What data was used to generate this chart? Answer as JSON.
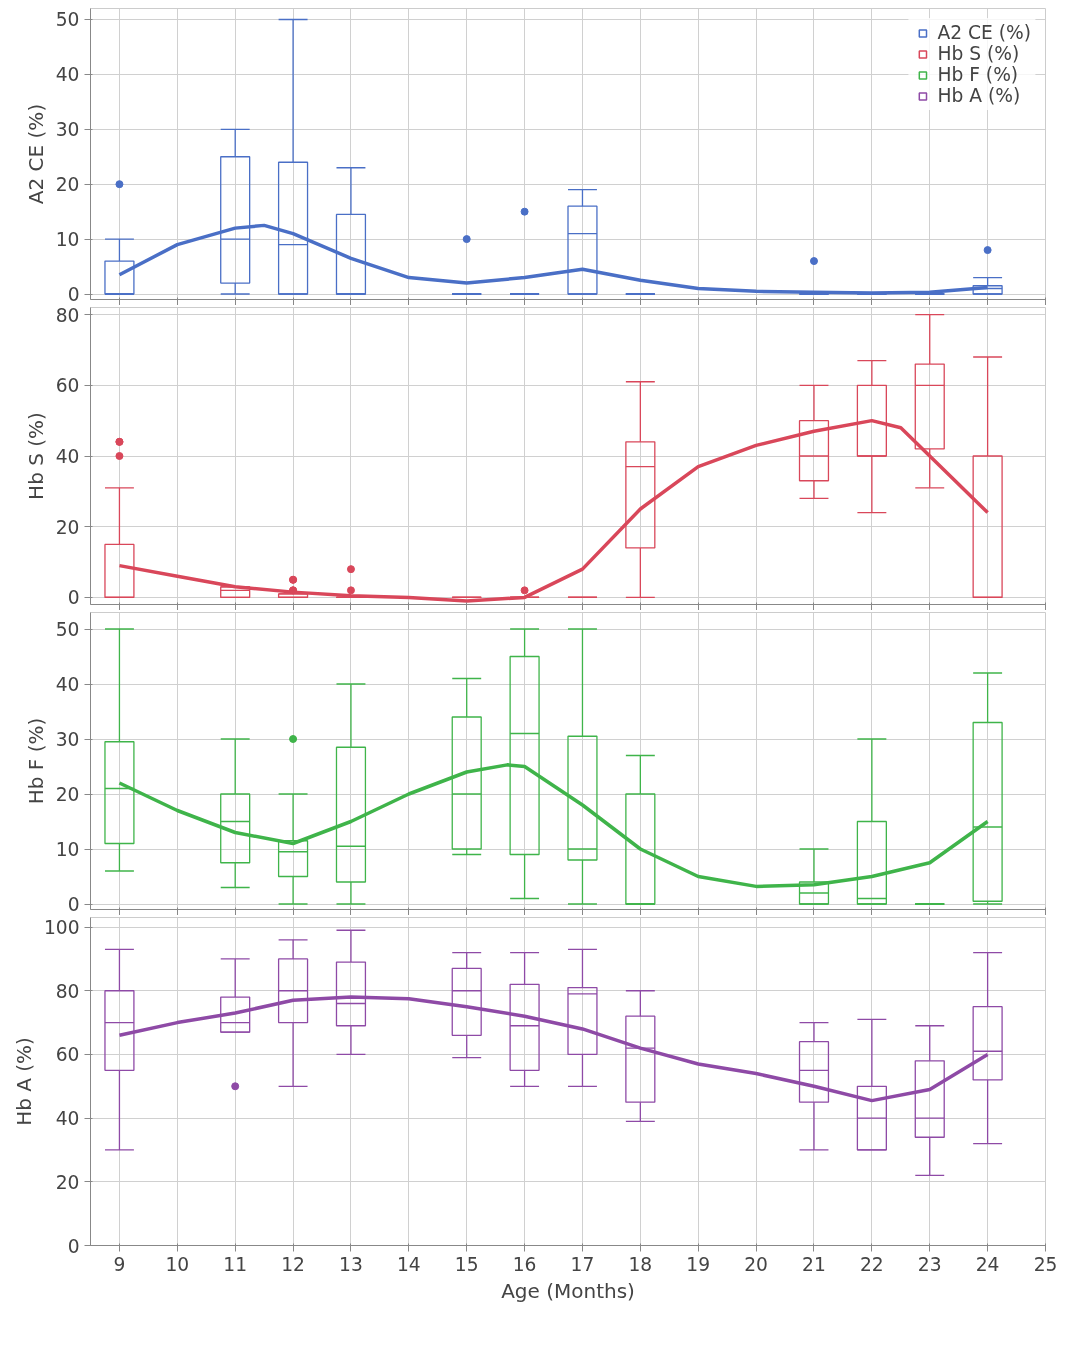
{
  "chart_data": [
    {
      "type": "box",
      "ylabel": "A2 CE (%)",
      "x": [
        9,
        11,
        12,
        13,
        15,
        16,
        17,
        18,
        21,
        22,
        23,
        24
      ],
      "xlim": [
        8.5,
        25
      ],
      "xticks": [
        9,
        10,
        11,
        12,
        13,
        14,
        15,
        16,
        17,
        18,
        19,
        20,
        21,
        22,
        23,
        24,
        25
      ],
      "ylim": [
        -1,
        52
      ],
      "yticks": [
        0,
        10,
        20,
        30,
        40,
        50
      ],
      "grid": true,
      "legend": "top right",
      "tick_labels": "y",
      "series": [
        {
          "name": "A2 CE (%)",
          "color": "#4a6fc6",
          "boxes": [
            {
              "low": 0,
              "q1": 0,
              "median": 0,
              "q3": 6,
              "high": 10,
              "outliers": [
                20
              ]
            },
            {
              "low": 0,
              "q1": 2,
              "median": 10,
              "q3": 25,
              "high": 30
            },
            {
              "low": 0,
              "q1": 0,
              "median": 9,
              "q3": 24,
              "high": 50
            },
            {
              "low": 0,
              "q1": 0,
              "median": 0,
              "q3": 14.5,
              "high": 23
            },
            {
              "low": 0,
              "q1": 0,
              "median": 0,
              "q3": 0,
              "high": 0,
              "outliers": [
                10
              ]
            },
            {
              "low": 0,
              "q1": 0,
              "median": 0,
              "q3": 0,
              "high": 0,
              "outliers": [
                15
              ]
            },
            {
              "low": 0,
              "q1": 0,
              "median": 11,
              "q3": 16,
              "high": 19
            },
            {
              "low": 0,
              "q1": 0,
              "median": 0,
              "q3": 0,
              "high": 0
            },
            {
              "low": 0,
              "q1": 0,
              "median": 0,
              "q3": 0,
              "high": 0,
              "outliers": [
                6
              ]
            },
            {
              "low": 0,
              "q1": 0,
              "median": 0,
              "q3": 0,
              "high": 0
            },
            {
              "low": 0,
              "q1": 0,
              "median": 0,
              "q3": 0,
              "high": 0
            },
            {
              "low": 0,
              "q1": 0,
              "median": 1,
              "q3": 1.5,
              "high": 3,
              "outliers": [
                8
              ]
            }
          ]
        },
        {
          "type": "line",
          "color": "#4a6fc6",
          "x": [
            9,
            10,
            11,
            11.5,
            12,
            13,
            14,
            15,
            16,
            17,
            18,
            19,
            20,
            21,
            22,
            23,
            24
          ],
          "values": [
            3.5,
            9,
            12,
            12.5,
            11,
            6.5,
            3,
            2,
            3,
            4.5,
            2.5,
            1,
            0.5,
            0.3,
            0.2,
            0.3,
            1.2
          ]
        }
      ]
    },
    {
      "type": "box",
      "ylabel": "Hb S (%)",
      "x": [
        9,
        11,
        12,
        13,
        15,
        16,
        17,
        18,
        21,
        22,
        23,
        24
      ],
      "xlim": [
        8.5,
        25
      ],
      "xticks": [
        9,
        10,
        11,
        12,
        13,
        14,
        15,
        16,
        17,
        18,
        19,
        20,
        21,
        22,
        23,
        24,
        25
      ],
      "ylim": [
        -2,
        82
      ],
      "yticks": [
        0,
        20,
        40,
        60,
        80
      ],
      "grid": true,
      "tick_labels": "y",
      "series": [
        {
          "name": "Hb S (%)",
          "color": "#d9475a",
          "boxes": [
            {
              "low": 0,
              "q1": 0,
              "median": 0,
              "q3": 15,
              "high": 31,
              "outliers": [
                44,
                44,
                40
              ]
            },
            {
              "low": 0,
              "q1": 0,
              "median": 2,
              "q3": 3,
              "high": 3
            },
            {
              "low": 0,
              "q1": 0,
              "median": 0,
              "q3": 1,
              "high": 1,
              "outliers": [
                5,
                5,
                2,
                2
              ]
            },
            {
              "low": 0,
              "q1": 0,
              "median": 0,
              "q3": 0,
              "high": 0,
              "outliers": [
                8,
                2
              ]
            },
            {
              "low": 0,
              "q1": 0,
              "median": 0,
              "q3": 0,
              "high": 0
            },
            {
              "low": 0,
              "q1": 0,
              "median": 0,
              "q3": 0,
              "high": 0,
              "outliers": [
                2
              ]
            },
            {
              "low": 0,
              "q1": 0,
              "median": 0,
              "q3": 0,
              "high": 0
            },
            {
              "low": 0,
              "q1": 14,
              "median": 37,
              "q3": 44,
              "high": 61
            },
            {
              "low": 28,
              "q1": 33,
              "median": 40,
              "q3": 50,
              "high": 60
            },
            {
              "low": 24,
              "q1": 40,
              "median": 40,
              "q3": 60,
              "high": 67
            },
            {
              "low": 31,
              "q1": 42,
              "median": 60,
              "q3": 66,
              "high": 80
            },
            {
              "low": 0,
              "q1": 0,
              "median": 0,
              "q3": 40,
              "high": 68
            }
          ]
        },
        {
          "type": "line",
          "color": "#d9475a",
          "x": [
            9,
            10,
            11,
            12,
            13,
            14,
            15,
            16,
            17,
            18,
            19,
            20,
            21,
            22,
            22.5,
            23,
            24
          ],
          "values": [
            9,
            6,
            3,
            1.5,
            0.5,
            0,
            -1,
            0,
            8,
            25,
            37,
            43,
            47,
            50,
            48,
            40,
            24
          ]
        }
      ]
    },
    {
      "type": "box",
      "ylabel": "Hb F (%)",
      "x": [
        9,
        11,
        12,
        13,
        15,
        16,
        17,
        18,
        21,
        22,
        23,
        24
      ],
      "xlim": [
        8.5,
        25
      ],
      "xticks": [
        9,
        10,
        11,
        12,
        13,
        14,
        15,
        16,
        17,
        18,
        19,
        20,
        21,
        22,
        23,
        24,
        25
      ],
      "ylim": [
        -1,
        53
      ],
      "yticks": [
        0,
        10,
        20,
        30,
        40,
        50
      ],
      "grid": true,
      "tick_labels": "y",
      "series": [
        {
          "name": "Hb F (%)",
          "color": "#3fb44a",
          "boxes": [
            {
              "low": 6,
              "q1": 11,
              "median": 21,
              "q3": 29.5,
              "high": 50
            },
            {
              "low": 3,
              "q1": 7.5,
              "median": 15,
              "q3": 20,
              "high": 30
            },
            {
              "low": 0,
              "q1": 5,
              "median": 9.5,
              "q3": 11.5,
              "high": 20,
              "outliers": [
                30
              ]
            },
            {
              "low": 0,
              "q1": 4,
              "median": 10.5,
              "q3": 28.5,
              "high": 40
            },
            {
              "low": 9,
              "q1": 10,
              "median": 20,
              "q3": 34,
              "high": 41
            },
            {
              "low": 1,
              "q1": 9,
              "median": 31,
              "q3": 45,
              "high": 50
            },
            {
              "low": 0,
              "q1": 8,
              "median": 10,
              "q3": 30.5,
              "high": 50
            },
            {
              "low": 0,
              "q1": 0,
              "median": 0,
              "q3": 20,
              "high": 27
            },
            {
              "low": 0,
              "q1": 0,
              "median": 2,
              "q3": 4,
              "high": 10
            },
            {
              "low": 0,
              "q1": 0,
              "median": 1,
              "q3": 15,
              "high": 30
            },
            {
              "low": 0,
              "q1": 0,
              "median": 0,
              "q3": 0,
              "high": 0
            },
            {
              "low": 0,
              "q1": 0.5,
              "median": 14,
              "q3": 33,
              "high": 42
            }
          ]
        },
        {
          "type": "line",
          "color": "#3fb44a",
          "x": [
            9,
            10,
            11,
            12,
            13,
            14,
            15,
            15.7,
            16,
            17,
            18,
            19,
            20,
            21,
            22,
            23,
            24
          ],
          "values": [
            22,
            17,
            13,
            11,
            15,
            20,
            24,
            25.3,
            25,
            18,
            10,
            5,
            3.2,
            3.5,
            5,
            7.5,
            15
          ]
        }
      ]
    },
    {
      "type": "box",
      "ylabel": "Hb A (%)",
      "xlabel": "Age (Months)",
      "x": [
        9,
        11,
        12,
        13,
        15,
        16,
        17,
        18,
        21,
        22,
        23,
        24
      ],
      "xlim": [
        8.5,
        25
      ],
      "xticks": [
        9,
        10,
        11,
        12,
        13,
        14,
        15,
        16,
        17,
        18,
        19,
        20,
        21,
        22,
        23,
        24,
        25
      ],
      "ylim": [
        0,
        103
      ],
      "yticks": [
        0,
        20,
        40,
        60,
        80,
        100
      ],
      "grid": true,
      "series": [
        {
          "name": "Hb A (%)",
          "color": "#8e4aa6",
          "boxes": [
            {
              "low": 30,
              "q1": 55,
              "median": 70,
              "q3": 80,
              "high": 93
            },
            {
              "low": 67,
              "q1": 67,
              "median": 70,
              "q3": 78,
              "high": 90,
              "outliers": [
                50
              ]
            },
            {
              "low": 50,
              "q1": 70,
              "median": 80,
              "q3": 90,
              "high": 96
            },
            {
              "low": 60,
              "q1": 69,
              "median": 76,
              "q3": 89,
              "high": 99
            },
            {
              "low": 59,
              "q1": 66,
              "median": 80,
              "q3": 87,
              "high": 92
            },
            {
              "low": 50,
              "q1": 55,
              "median": 69,
              "q3": 82,
              "high": 92
            },
            {
              "low": 50,
              "q1": 60,
              "median": 79,
              "q3": 81,
              "high": 93
            },
            {
              "low": 39,
              "q1": 45,
              "median": 62,
              "q3": 72,
              "high": 80
            },
            {
              "low": 30,
              "q1": 45,
              "median": 55,
              "q3": 64,
              "high": 70
            },
            {
              "low": 30,
              "q1": 30,
              "median": 40,
              "q3": 50,
              "high": 71
            },
            {
              "low": 22,
              "q1": 34,
              "median": 40,
              "q3": 58,
              "high": 69
            },
            {
              "low": 32,
              "q1": 52,
              "median": 61,
              "q3": 75,
              "high": 92
            }
          ]
        },
        {
          "type": "line",
          "color": "#8e4aa6",
          "x": [
            9,
            10,
            11,
            12,
            13,
            14,
            15,
            16,
            17,
            18,
            19,
            20,
            21,
            22,
            23,
            24
          ],
          "values": [
            66,
            70,
            73,
            77,
            78,
            77.5,
            75,
            72,
            68,
            62,
            57,
            54,
            50,
            45.5,
            49,
            60
          ]
        }
      ]
    }
  ]
}
